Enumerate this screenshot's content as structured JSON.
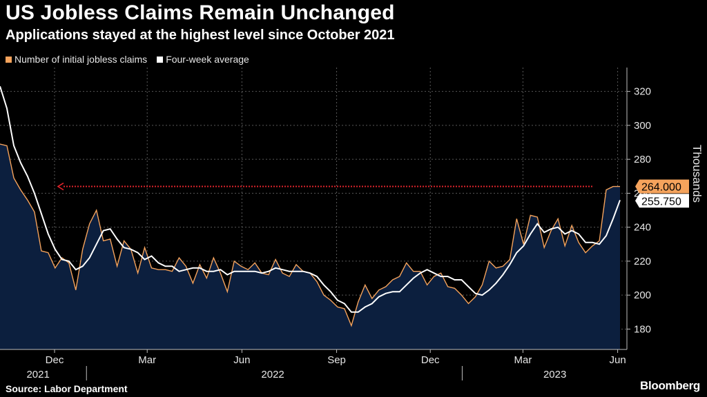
{
  "header": {
    "title": "US Jobless Claims Remain Unchanged",
    "subtitle": "Applications stayed at the highest level since October 2021"
  },
  "footer": {
    "source": "Source: Labor Department",
    "brand": "Bloomberg"
  },
  "colors": {
    "claims": "#f5a35c",
    "average": "#ffffff",
    "area": "#0c1f3e",
    "arrow": "#e0242b",
    "grid": "#5a5a5a"
  },
  "chart_data": {
    "type": "area",
    "ylabel": "Thousands",
    "ylim": [
      168,
      330
    ],
    "yticks": [
      180,
      200,
      220,
      240,
      260,
      280,
      300,
      320
    ],
    "x_range": [
      "2021-10-09",
      "2023-06-10"
    ],
    "x_ticks": [
      {
        "label": "Dec",
        "date": "2021-12-01"
      },
      {
        "label": "Mar",
        "date": "2022-03-01"
      },
      {
        "label": "Jun",
        "date": "2022-06-01"
      },
      {
        "label": "Sep",
        "date": "2022-09-01"
      },
      {
        "label": "Dec",
        "date": "2022-12-01"
      },
      {
        "label": "Mar",
        "date": "2023-03-01"
      },
      {
        "label": "Jun",
        "date": "2023-06-01"
      }
    ],
    "year_labels": [
      {
        "label": "2021",
        "date": "2021-11-15"
      },
      {
        "label": "2022",
        "date": "2022-07-01"
      },
      {
        "label": "2023",
        "date": "2023-04-01"
      }
    ],
    "year_dividers": [
      "2022-01-01",
      "2023-01-01"
    ],
    "series": [
      {
        "name": "Number of initial jobless claims",
        "values": [
          289,
          288,
          269,
          262,
          256,
          249,
          226,
          225,
          216,
          222,
          219,
          203,
          227,
          242,
          250,
          232,
          233,
          217,
          232,
          227,
          213,
          228,
          216,
          215,
          215,
          214,
          222,
          217,
          207,
          218,
          210,
          222,
          213,
          202,
          220,
          217,
          215,
          219,
          213,
          212,
          221,
          213,
          211,
          218,
          214,
          213,
          208,
          200,
          197,
          193,
          192,
          182,
          196,
          206,
          198,
          203,
          205,
          209,
          211,
          219,
          214,
          214,
          206,
          211,
          213,
          205,
          204,
          200,
          195,
          199,
          206,
          220,
          216,
          217,
          221,
          245,
          230,
          247,
          246,
          228,
          238,
          245,
          229,
          241,
          231,
          225,
          229,
          232,
          262,
          264,
          264
        ]
      },
      {
        "name": "Four-week average",
        "values": [
          323,
          310,
          288,
          278,
          270,
          260,
          248,
          236,
          227,
          221,
          220,
          215,
          217,
          222,
          230,
          238,
          239,
          233,
          228,
          227,
          225,
          221,
          223,
          219,
          217,
          217,
          214,
          215,
          216,
          216,
          214,
          214,
          215,
          212,
          214,
          214,
          214,
          214,
          213,
          214,
          216,
          215,
          214,
          214,
          214,
          213,
          211,
          206,
          202,
          197,
          195,
          190,
          190,
          193,
          195,
          199,
          201,
          202,
          202,
          206,
          210,
          213,
          215,
          213,
          211,
          211,
          209,
          209,
          205,
          201,
          200,
          203,
          207,
          212,
          218,
          225,
          229,
          236,
          242,
          237,
          239,
          240,
          236,
          238,
          236,
          231,
          231,
          230,
          235,
          245,
          256
        ]
      }
    ],
    "end_labels": [
      "264.000",
      "255.750"
    ],
    "annotation": {
      "type": "dashed-arrow",
      "value": 264
    }
  }
}
